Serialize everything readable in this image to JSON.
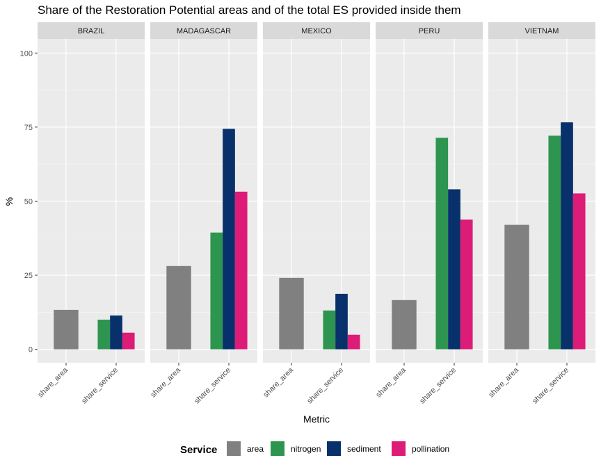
{
  "chart_data": {
    "type": "bar",
    "title": "Share of the Restoration Potential areas and of the total ES provided inside them",
    "xlabel": "Metric",
    "ylabel": "%",
    "ylim": [
      0,
      100
    ],
    "yticks": [
      0,
      25,
      50,
      75,
      100
    ],
    "facets": [
      "BRAZIL",
      "MADAGASCAR",
      "MEXICO",
      "PERU",
      "VIETNAM"
    ],
    "categories": [
      "share_area",
      "share_service"
    ],
    "legend": {
      "title": "Service",
      "position": "bottom",
      "entries": [
        "area",
        "nitrogen",
        "sediment",
        "pollination"
      ]
    },
    "colors": {
      "area": "#808080",
      "nitrogen": "#2E9550",
      "sediment": "#08306B",
      "pollination": "#DD1C77"
    },
    "panels": [
      {
        "facet": "BRAZIL",
        "share_area": {
          "area": 13.3
        },
        "share_service": {
          "nitrogen": 10.0,
          "sediment": 11.4,
          "pollination": 5.6
        }
      },
      {
        "facet": "MADAGASCAR",
        "share_area": {
          "area": 28.1
        },
        "share_service": {
          "nitrogen": 39.4,
          "sediment": 74.4,
          "pollination": 53.2
        }
      },
      {
        "facet": "MEXICO",
        "share_area": {
          "area": 24.1
        },
        "share_service": {
          "nitrogen": 13.1,
          "sediment": 18.7,
          "pollination": 4.9
        }
      },
      {
        "facet": "PERU",
        "share_area": {
          "area": 16.6
        },
        "share_service": {
          "nitrogen": 71.4,
          "sediment": 54.0,
          "pollination": 43.8
        }
      },
      {
        "facet": "VIETNAM",
        "share_area": {
          "area": 42.0
        },
        "share_service": {
          "nitrogen": 72.1,
          "sediment": 76.6,
          "pollination": 52.6
        }
      }
    ]
  }
}
